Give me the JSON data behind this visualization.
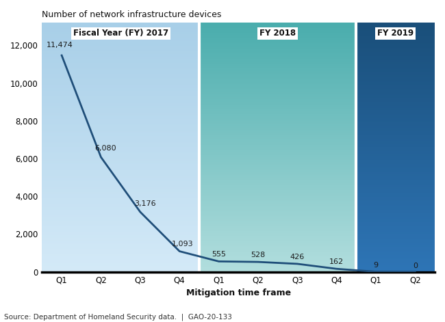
{
  "x_labels": [
    "Q1",
    "Q2",
    "Q3",
    "Q4",
    "Q1",
    "Q2",
    "Q3",
    "Q4",
    "Q1",
    "Q2"
  ],
  "x_values": [
    0,
    1,
    2,
    3,
    4,
    5,
    6,
    7,
    8,
    9
  ],
  "y_values": [
    11474,
    6080,
    3176,
    1093,
    555,
    528,
    426,
    162,
    9,
    0
  ],
  "y_labels": [
    "0",
    "2,000",
    "4,000",
    "6,000",
    "8,000",
    "10,000",
    "12,000"
  ],
  "y_ticks": [
    0,
    2000,
    4000,
    6000,
    8000,
    10000,
    12000
  ],
  "ylim": [
    0,
    13200
  ],
  "title": "Number of network infrastructure devices",
  "xlabel": "Mitigation time frame",
  "source": "Source: Department of Homeland Security data.  |  GAO-20-133",
  "line_color": "#1f4e79",
  "line_width": 2.0,
  "annotations": [
    "11,474",
    "6,080",
    "3,176",
    "1,093",
    "555",
    "528",
    "426",
    "162",
    "9",
    "0"
  ],
  "fig_width": 6.5,
  "fig_height": 4.71,
  "dpi": 100
}
